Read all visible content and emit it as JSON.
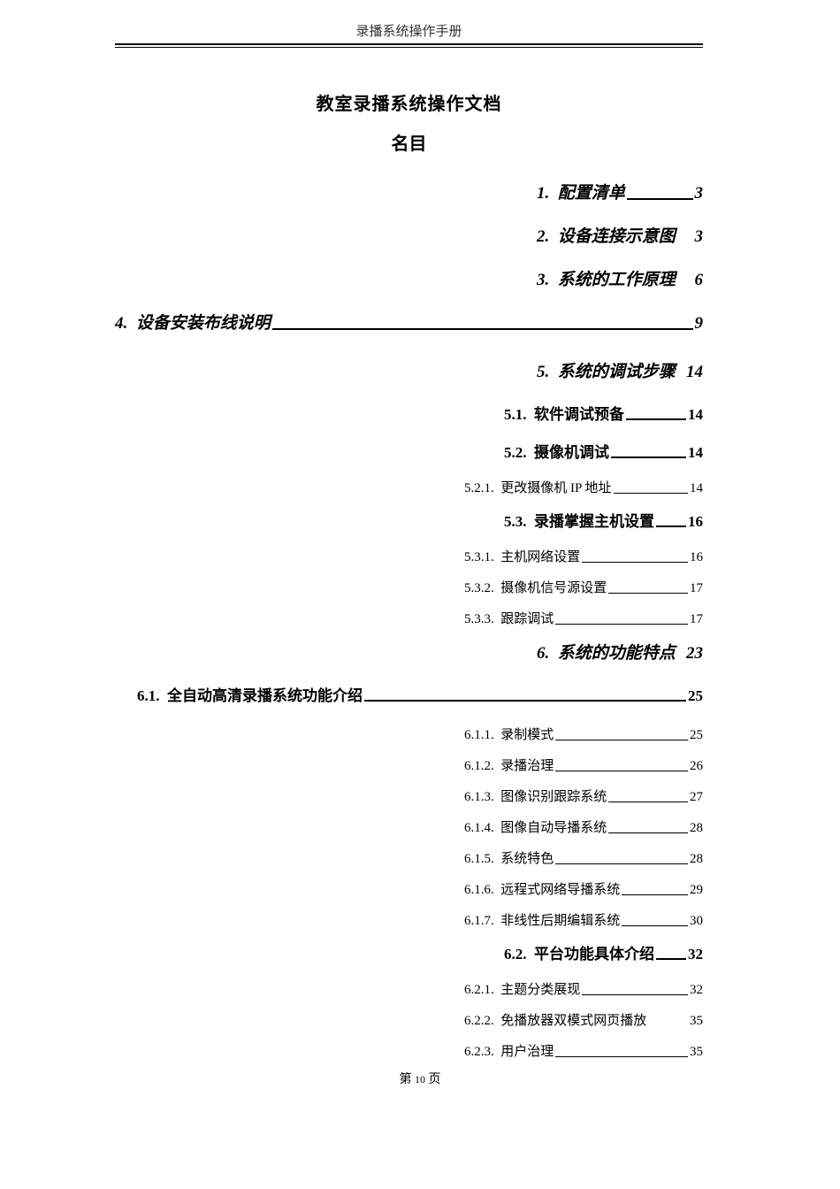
{
  "header": "录播系统操作手册",
  "title": "教室录播系统操作文档",
  "toc_title": "名目",
  "entries": [
    {
      "cls": "lvl1",
      "num": "1.",
      "label": "配置清单",
      "page": "3",
      "leader": true
    },
    {
      "cls": "lvl1",
      "num": "2.",
      "label": "设备连接示意图",
      "page": "3",
      "leader": false
    },
    {
      "cls": "lvl1",
      "num": "3.",
      "label": "系统的工作原理",
      "page": "6",
      "leader": false
    },
    {
      "cls": "lvl1-wide",
      "num": "4.",
      "label": "设备安装布线说明",
      "page": "9",
      "leader": true
    },
    {
      "cls": "lvl1",
      "num": "5.",
      "label": "系统的调试步骤",
      "page": "14",
      "leader": false
    },
    {
      "cls": "lvl2",
      "num": "5.1.",
      "label": "软件调试预备",
      "page": "14",
      "leader": true
    },
    {
      "cls": "lvl2",
      "num": "5.2.",
      "label": "摄像机调试",
      "page": "14",
      "leader": true
    },
    {
      "cls": "lvl3",
      "num": "5.2.1.",
      "label": "更改摄像机 IP 地址",
      "page": "14",
      "leader": true
    },
    {
      "cls": "lvl2",
      "num": "5.3.",
      "label": "录播掌握主机设置",
      "page": "16",
      "leader": true
    },
    {
      "cls": "lvl3",
      "num": "5.3.1.",
      "label": "主机网络设置",
      "page": "16",
      "leader": true
    },
    {
      "cls": "lvl3",
      "num": "5.3.2.",
      "label": "摄像机信号源设置",
      "page": "17",
      "leader": true
    },
    {
      "cls": "lvl3",
      "num": "5.3.3.",
      "label": "跟踪调试",
      "page": "17",
      "leader": true
    },
    {
      "cls": "lvl1",
      "num": "6.",
      "label": "系统的功能特点",
      "page": "23",
      "leader": false
    },
    {
      "cls": "lvl2-wide",
      "num": "6.1.",
      "label": "全自动高清录播系统功能介绍",
      "page": "25",
      "leader": true
    },
    {
      "cls": "lvl3",
      "num": "6.1.1.",
      "label": "录制模式",
      "page": "25",
      "leader": true
    },
    {
      "cls": "lvl3",
      "num": "6.1.2.",
      "label": "录播治理",
      "page": "26",
      "leader": true
    },
    {
      "cls": "lvl3",
      "num": "6.1.3.",
      "label": "图像识别跟踪系统",
      "page": "27",
      "leader": true
    },
    {
      "cls": "lvl3",
      "num": "6.1.4.",
      "label": "图像自动导播系统",
      "page": "28",
      "leader": true
    },
    {
      "cls": "lvl3",
      "num": "6.1.5.",
      "label": "系统特色",
      "page": "28",
      "leader": true
    },
    {
      "cls": "lvl3",
      "num": "6.1.6.",
      "label": "远程式网络导播系统",
      "page": "29",
      "leader": true
    },
    {
      "cls": "lvl3",
      "num": "6.1.7.",
      "label": "非线性后期编辑系统",
      "page": "30",
      "leader": true
    },
    {
      "cls": "lvl2",
      "num": "6.2.",
      "label": "平台功能具体介绍",
      "page": "32",
      "leader": true
    },
    {
      "cls": "lvl3",
      "num": "6.2.1.",
      "label": "主题分类展现",
      "page": "32",
      "leader": true
    },
    {
      "cls": "lvl3",
      "num": "6.2.2.",
      "label": "免播放器双模式网页播放",
      "page": "35",
      "leader": false
    },
    {
      "cls": "lvl3",
      "num": "6.2.3.",
      "label": "用户治理",
      "page": "35",
      "leader": true
    }
  ],
  "footer_prefix": "第 ",
  "footer_page": "10",
  "footer_suffix": " 页"
}
